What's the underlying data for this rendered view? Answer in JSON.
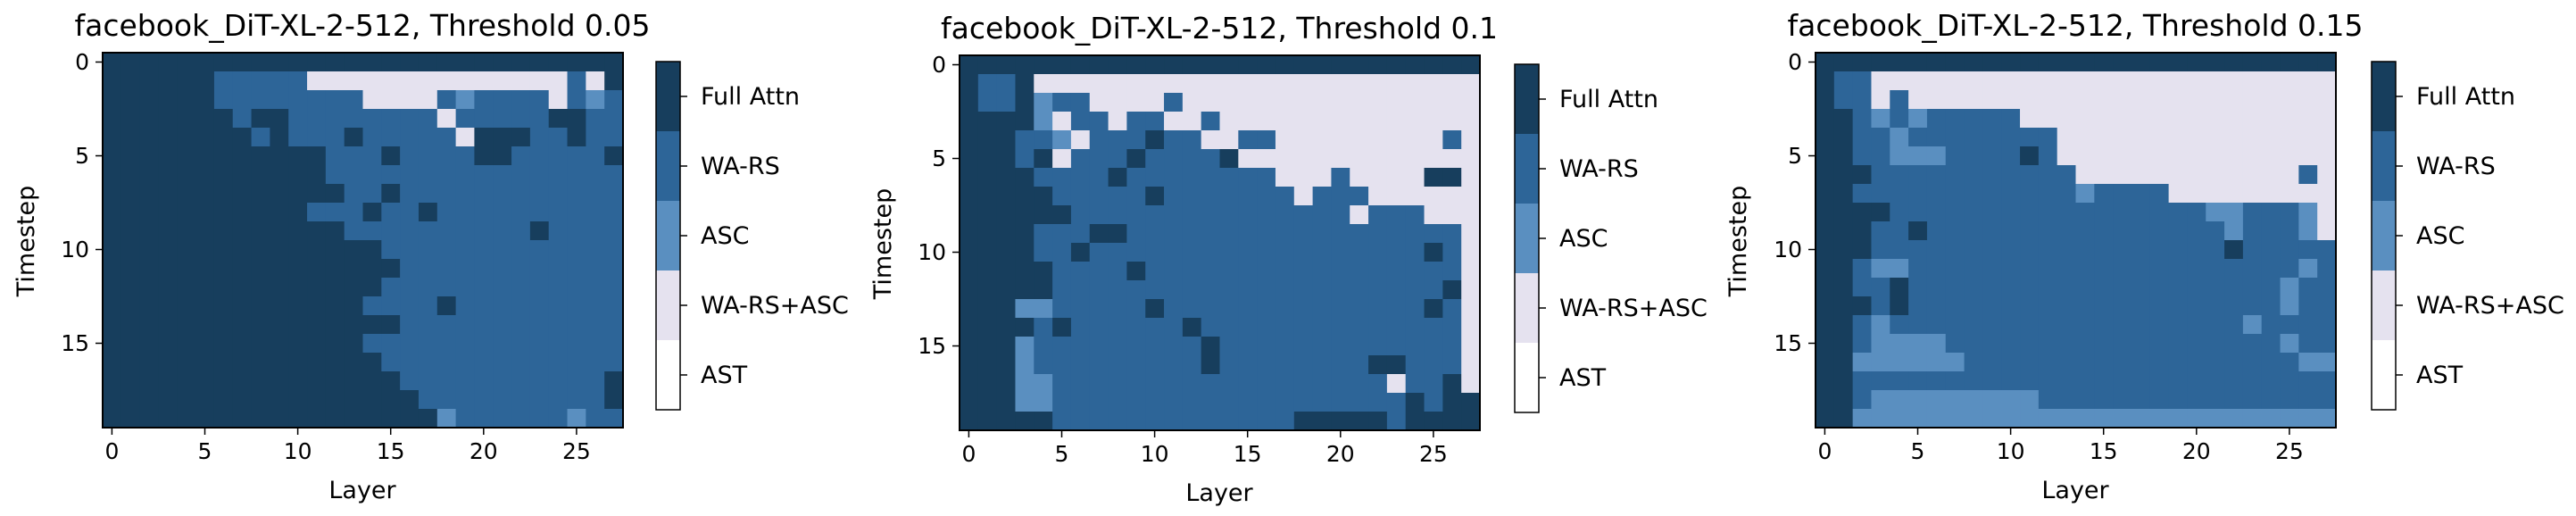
{
  "chart_data": [
    {
      "type": "heatmap",
      "title": "facebook_DiT-XL-2-512, Threshold 0.05",
      "xlabel": "Layer",
      "ylabel": "Timestep",
      "x_ticks": [
        "0",
        "5",
        "10",
        "15",
        "20",
        "25"
      ],
      "y_ticks": [
        "0",
        "5",
        "10",
        "15"
      ],
      "xlim": [
        0,
        27
      ],
      "ylim": [
        0,
        19
      ],
      "legend": "colorbar-right",
      "grid": "<<<<<<<<<<<<<<<<<<<<<<<<<<<<|<<<<<<>>>>>^^^^^^^^^^^^^^>^|<<<<<<>>>>>>>>^^^^>=>>>>^>=>|<<<<<<<><<>>>>>>>>^>>>>><<>>|<<<<<<<<><>>><>>>>>^<<<>><>>|<<<<<<<<<<<<>>><>>>><<>>>>><|<<<<<<<<<<<<>>>>>>>>>>>>>>>>|<<<<<<<<<<<<<>><>>>>>>>>>>>>|<<<<<<<<<<<>>><>><>>>>>>>>>>|<<<<<<<<<<<<<>>>>>>>>>><>>>>|<<<<<<<<<<<<<<<>>>>>>>>>>>>>|<<<<<<<<<<<<<<<<>>>>>>>>>>>>|<<<<<<<<<<<<<<<>>>>>>>>>>>>>|<<<<<<<<<<<<<<>>>><>>>>>>>>>|<<<<<<<<<<<<<<<<>>>>>>>>>>>>|<<<<<<<<<<<<<<>>>>>>>>>>>>>>|<<<<<<<<<<<<<<<>>>>>>>>>>>>>|<<<<<<<<<<<<<<<<>>>>>>>>>>><|<<<<<<<<<<<<<<<<<>>>>>>>>>><|<<<<<<<<<<<<<<<<<<=>>>>>>=>>"
    },
    {
      "type": "heatmap",
      "title": "facebook_DiT-XL-2-512, Threshold 0.1",
      "xlabel": "Layer",
      "ylabel": "Timestep",
      "x_ticks": [
        "0",
        "5",
        "10",
        "15",
        "20",
        "25"
      ],
      "y_ticks": [
        "0",
        "5",
        "10",
        "15"
      ],
      "xlim": [
        0,
        27
      ],
      "ylim": [
        0,
        19
      ],
      "legend": "colorbar-right",
      "grid": "<<<<<<<<<<<<<<<<<<<<<<<<<<<<|<>><^^^^^^^^^^^^^^^^^^^^^^^^|<>><=>>^^^^>^^^^^^^^^^^^^^^^|<<<<=^>>^>>^^>^^^^^^^^^^^^^^|<<<>>=^>>><>>^^>>^^^^^^^^^>^|<<<><^>>><>>>><^^^^^^^^^^^^^|<<<<>>>><>>>>>>>>^^^>^^^^<<^|<<<<<>>>>><>>>>>>>^>>>^^^^^^|<<<<<<>>>>>>>>>>>>>>>^>>>^^^|<<<<>>><<>>>>>>>>>>>>>>>>>>^|<<<<>><>>>>>>>>>>>>>>>>>><>^|<<<<<>>>><>>>>>>>>>>>>>>>>>^|<<<<<>>>>>>>>>>>>>>>>>>>>><^|<<<==>>>>><>>>>>>>>>>>>>><>^|<<<<><>>>>>><>>>>>>>>>>>>>>^|<<<=>>>>>>>>><>>>>>>>>>>>>>^|<<<=>>>>>>>>><>>>>>>>><<>>>^|<<<==>>>>>>>>>>>>>>>>>>^>><^|<<<==>>>>>>>>>>>>>>>>>>><><<|<<<<<>>>>>>>>>>>>><<<<<><<<<"
    },
    {
      "type": "heatmap",
      "title": "facebook_DiT-XL-2-512, Threshold 0.15",
      "xlabel": "Layer",
      "ylabel": "Timestep",
      "x_ticks": [
        "0",
        "5",
        "10",
        "15",
        "20",
        "25"
      ],
      "y_ticks": [
        "0",
        "5",
        "10",
        "15"
      ],
      "xlim": [
        0,
        27
      ],
      "ylim": [
        0,
        19
      ],
      "legend": "colorbar-right",
      "grid": "<<<<<<<<<<<<<<<<<<<<<<<<<<<<|<>>^^^^^^^^^^^^^^^^^^^^^^^^^|<>>^>^^^^^^^^^^^^^^^^^^^^^^^|<<>=>=>>>>>^^^^^^^^^^^^^^^^^|<<>>=>>>>>>>>^^^^^^^^^^^^^^^|<<>>===>>>><>^^^^^^^^^^^^^^^|<<<>>>>>>>>>>>^^^^^^^^^^^^>^|<<>>>>>>>>>>>>=>>>>^^^^^^^^^|<<<<>>>>>>>>>>>>>>>>>==>>>=^|<<<>><>>>>>>>>>>>>>>>>=>>>=^|<<<>>>>>>>>>>>>>>>>>>><>>>>>|<<>==>>>>>>>>>>>>>>>>>>>>>=>|<<>><>>>>>>>>>>>>>>>>>>>>=>>|<<<><>>>>>>>>>>>>>>>>>>>>=>>|<<>=>>>>>>>>>>>>>>>>>>>=>>>>|<<>====>>>>>>>>>>>>>>>>>>=>>|<<======>>>>>>>>>>>>>>>>>>==|<<>>>>>>>>>>>>>>>>>>>>>>>>>>|<<>=========>>>>>>>>>>>>>>>>|<<==========================="
    }
  ],
  "colorbar": {
    "labels": [
      "Full Attn",
      "WA-RS",
      "ASC",
      "WA-RS+ASC",
      "AST"
    ],
    "colors": [
      "#173e5d",
      "#2d6598",
      "#5a8fc0",
      "#e5e2ef",
      "#ffffff"
    ]
  }
}
